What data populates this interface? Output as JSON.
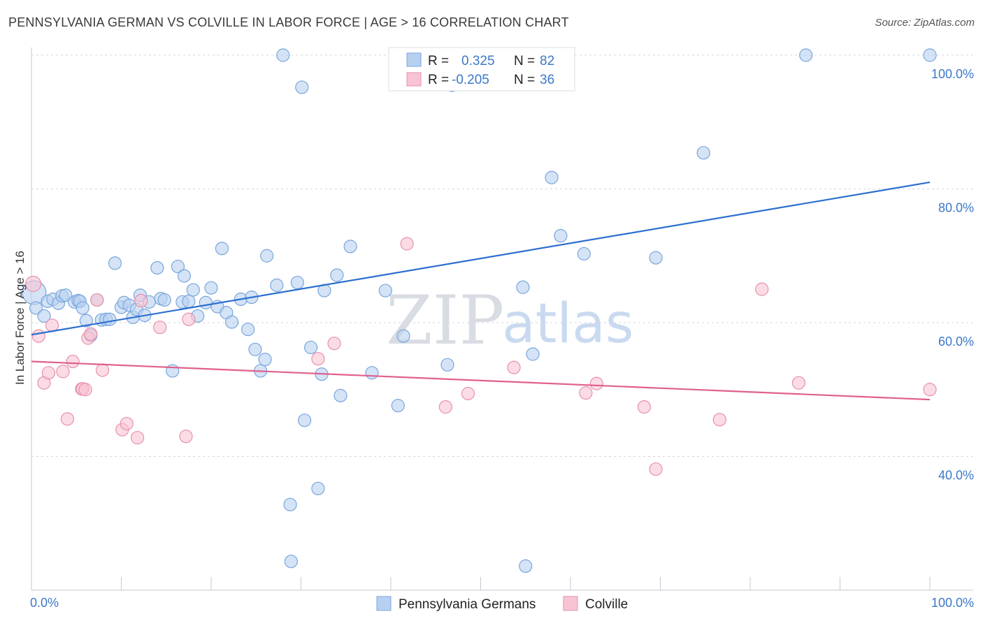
{
  "title": "PENNSYLVANIA GERMAN VS COLVILLE IN LABOR FORCE | AGE > 16 CORRELATION CHART",
  "source": "Source: ZipAtlas.com",
  "watermark": {
    "zip": "ZIP",
    "atlas": "atlas"
  },
  "colors": {
    "blue_fill": "#b8d0f0",
    "blue_stroke": "#7aa6dc",
    "blue_line": "#2b6fcf",
    "pink_fill": "#f8c4d4",
    "pink_stroke": "#e890ac",
    "pink_line": "#e0608c",
    "tick": "#3c78c8",
    "grid": "#d0d6de"
  },
  "legend": {
    "rows": [
      {
        "r_label": "R =",
        "r_value": "0.325",
        "n_label": "N =",
        "n_value": "82"
      },
      {
        "r_label": "R =",
        "r_value": "-0.205",
        "n_label": "N =",
        "n_value": "36"
      }
    ]
  },
  "chart_data": {
    "type": "scatter",
    "ylabel": "In Labor Force | Age > 16",
    "xlim": [
      0,
      100
    ],
    "ylim": [
      20,
      100
    ],
    "x_tick_labels": [
      "0.0%",
      "100.0%"
    ],
    "y_ticks": [
      40,
      60,
      80,
      100
    ],
    "y_tick_labels": [
      "40.0%",
      "60.0%",
      "80.0%",
      "100.0%"
    ],
    "grid": "horizontal dashed",
    "legend_position": "top-center",
    "series": [
      {
        "name": "Pennsylvania Germans",
        "trend": {
          "x": [
            0,
            100
          ],
          "y": [
            58.2,
            81.0
          ]
        },
        "points": [
          [
            0.3,
            64.5
          ],
          [
            0.5,
            62.2
          ],
          [
            1.4,
            61.0
          ],
          [
            1.8,
            63.2
          ],
          [
            2.4,
            63.5
          ],
          [
            3.0,
            62.9
          ],
          [
            3.4,
            64.0
          ],
          [
            3.8,
            64.1
          ],
          [
            4.8,
            63.1
          ],
          [
            5.2,
            63.3
          ],
          [
            5.4,
            63.2
          ],
          [
            5.7,
            62.2
          ],
          [
            6.1,
            60.3
          ],
          [
            6.6,
            58.1
          ],
          [
            7.3,
            63.4
          ],
          [
            7.8,
            60.4
          ],
          [
            8.3,
            60.5
          ],
          [
            8.7,
            60.5
          ],
          [
            9.3,
            68.9
          ],
          [
            10.0,
            62.3
          ],
          [
            10.3,
            63.0
          ],
          [
            10.9,
            62.6
          ],
          [
            11.3,
            60.8
          ],
          [
            11.7,
            62.0
          ],
          [
            12.1,
            64.1
          ],
          [
            12.6,
            61.1
          ],
          [
            13.1,
            63.1
          ],
          [
            14.0,
            68.2
          ],
          [
            14.4,
            63.6
          ],
          [
            14.8,
            63.4
          ],
          [
            15.7,
            52.8
          ],
          [
            16.3,
            68.4
          ],
          [
            16.8,
            63.1
          ],
          [
            17.0,
            67.0
          ],
          [
            17.5,
            63.2
          ],
          [
            18.0,
            64.9
          ],
          [
            18.5,
            61.0
          ],
          [
            19.4,
            63.0
          ],
          [
            20.0,
            65.2
          ],
          [
            20.7,
            62.4
          ],
          [
            21.2,
            71.1
          ],
          [
            21.7,
            61.5
          ],
          [
            22.3,
            60.1
          ],
          [
            23.3,
            63.5
          ],
          [
            24.1,
            59.0
          ],
          [
            24.5,
            63.8
          ],
          [
            24.9,
            56.0
          ],
          [
            25.5,
            52.8
          ],
          [
            26.0,
            54.5
          ],
          [
            26.2,
            70.0
          ],
          [
            27.3,
            65.6
          ],
          [
            28.0,
            100.0
          ],
          [
            28.8,
            32.8
          ],
          [
            28.9,
            24.3
          ],
          [
            29.6,
            66.0
          ],
          [
            30.1,
            95.2
          ],
          [
            30.4,
            45.4
          ],
          [
            31.1,
            56.3
          ],
          [
            31.9,
            35.2
          ],
          [
            32.3,
            52.3
          ],
          [
            32.6,
            64.8
          ],
          [
            34.0,
            67.1
          ],
          [
            34.4,
            49.1
          ],
          [
            35.5,
            71.4
          ],
          [
            37.9,
            52.5
          ],
          [
            39.4,
            64.8
          ],
          [
            40.8,
            47.6
          ],
          [
            41.4,
            58.0
          ],
          [
            43.8,
            100.0
          ],
          [
            46.3,
            53.7
          ],
          [
            46.8,
            95.5
          ],
          [
            50.0,
            100.0
          ],
          [
            54.7,
            65.3
          ],
          [
            55.0,
            23.6
          ],
          [
            55.8,
            55.3
          ],
          [
            57.9,
            81.7
          ],
          [
            58.9,
            73.0
          ],
          [
            61.5,
            70.3
          ],
          [
            69.5,
            69.7
          ],
          [
            74.8,
            85.4
          ],
          [
            86.2,
            100.0
          ],
          [
            100.0,
            100.0
          ]
        ]
      },
      {
        "name": "Colville",
        "trend": {
          "x": [
            0,
            100
          ],
          "y": [
            54.2,
            48.5
          ]
        },
        "points": [
          [
            0.2,
            65.8
          ],
          [
            0.8,
            58.0
          ],
          [
            1.4,
            51.0
          ],
          [
            1.9,
            52.5
          ],
          [
            2.3,
            59.6
          ],
          [
            3.5,
            52.7
          ],
          [
            4.0,
            45.6
          ],
          [
            4.6,
            54.2
          ],
          [
            5.6,
            50.1
          ],
          [
            5.7,
            50.1
          ],
          [
            6.3,
            57.7
          ],
          [
            6.6,
            58.3
          ],
          [
            7.3,
            63.4
          ],
          [
            7.9,
            52.9
          ],
          [
            10.1,
            44.0
          ],
          [
            10.6,
            44.9
          ],
          [
            11.8,
            42.8
          ],
          [
            14.3,
            59.3
          ],
          [
            17.2,
            43.0
          ],
          [
            17.5,
            60.5
          ],
          [
            31.9,
            54.6
          ],
          [
            33.7,
            56.9
          ],
          [
            41.8,
            71.8
          ],
          [
            46.1,
            47.4
          ],
          [
            48.6,
            49.4
          ],
          [
            53.7,
            53.3
          ],
          [
            61.7,
            49.5
          ],
          [
            62.9,
            50.9
          ],
          [
            68.2,
            47.4
          ],
          [
            69.5,
            38.1
          ],
          [
            76.6,
            45.5
          ],
          [
            81.3,
            65.0
          ],
          [
            85.4,
            51.0
          ],
          [
            100.0,
            50.0
          ],
          [
            12.2,
            63.3
          ],
          [
            6.0,
            50.0
          ]
        ]
      }
    ]
  }
}
